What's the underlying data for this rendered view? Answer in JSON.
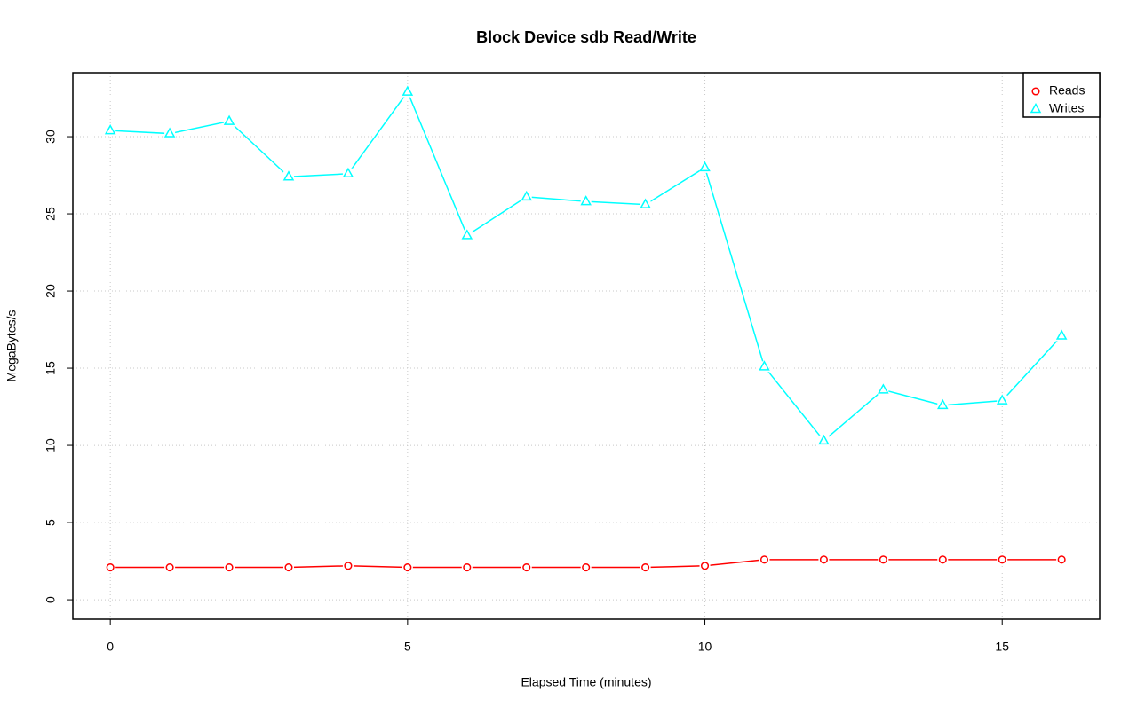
{
  "chart_data": {
    "type": "line",
    "title": "Block Device sdb Read/Write",
    "x_label": "Elapsed Time (minutes)",
    "y_label": "MegaBytes/s",
    "x": [
      0,
      1,
      2,
      3,
      4,
      5,
      6,
      7,
      8,
      9,
      10,
      11,
      12,
      13,
      14,
      15,
      16
    ],
    "series": [
      {
        "name": "Reads",
        "color": "#ff0000",
        "marker": "circle",
        "values": [
          2.1,
          2.1,
          2.1,
          2.1,
          2.2,
          2.1,
          2.1,
          2.1,
          2.1,
          2.1,
          2.2,
          2.6,
          2.6,
          2.6,
          2.6,
          2.6,
          2.6
        ]
      },
      {
        "name": "Writes",
        "color": "#00ffff",
        "marker": "triangle",
        "values": [
          30.4,
          30.2,
          31.0,
          27.4,
          27.6,
          32.9,
          23.6,
          26.1,
          25.8,
          25.6,
          28.0,
          15.1,
          10.3,
          13.6,
          12.6,
          12.9,
          17.1
        ]
      }
    ],
    "xlim": [
      -0.63,
      16.64
    ],
    "ylim": [
      -1.26,
      34.14
    ],
    "xticks": [
      0,
      5,
      10,
      15
    ],
    "yticks": [
      0,
      5,
      10,
      15,
      20,
      25,
      30
    ],
    "grid": true,
    "legend": "top-right"
  }
}
